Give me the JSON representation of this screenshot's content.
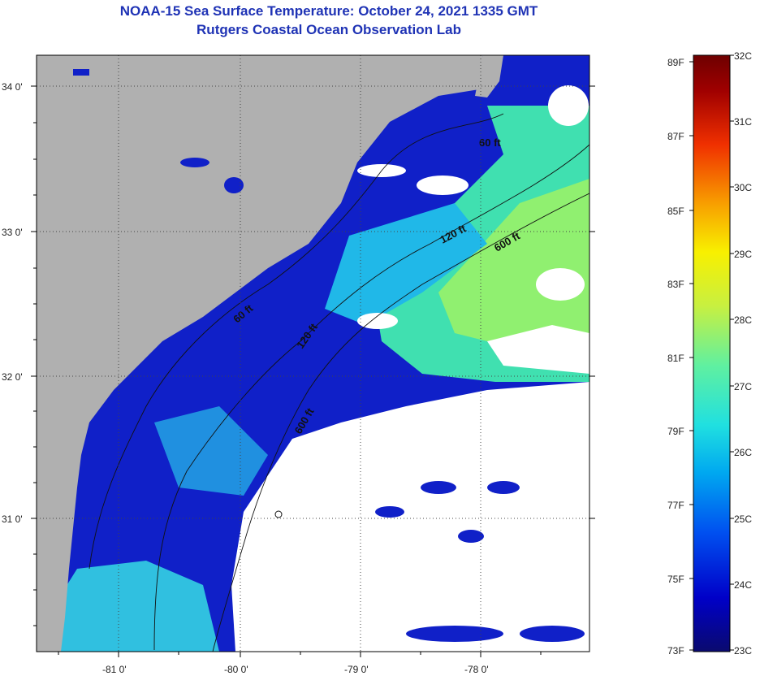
{
  "title_line1": "NOAA-15 Sea Surface Temperature:  October 24, 2021 1335 GMT",
  "title_line2": "Rutgers Coastal Ocean Observation Lab",
  "map": {
    "lat_labels": [
      "34 0'",
      "33 0'",
      "32 0'",
      "31 0'"
    ],
    "lon_labels": [
      "-81 0'",
      "-80 0'",
      "-79 0'",
      "-78 0'"
    ],
    "contour_labels": [
      "60 ft",
      "120 ft",
      "600 ft",
      "60 ft",
      "120 ft",
      "600 ft"
    ],
    "colors": {
      "land": "#b0b0b0",
      "cloud": "#ffffff",
      "frame": "#000000"
    }
  },
  "colorbar": {
    "celsius_labels": [
      "32C",
      "31C",
      "30C",
      "29C",
      "28C",
      "27C",
      "26C",
      "25C",
      "24C",
      "23C"
    ],
    "fahrenheit_labels": [
      "89F",
      "87F",
      "85F",
      "83F",
      "81F",
      "79F",
      "77F",
      "75F",
      "73F"
    ],
    "colors": [
      "#0a0a6e",
      "#0000c8",
      "#0050f0",
      "#00a8f0",
      "#20e0e0",
      "#60f0a0",
      "#c8f040",
      "#f8f000",
      "#f8a000",
      "#f03000",
      "#a00000",
      "#6e0000"
    ]
  }
}
